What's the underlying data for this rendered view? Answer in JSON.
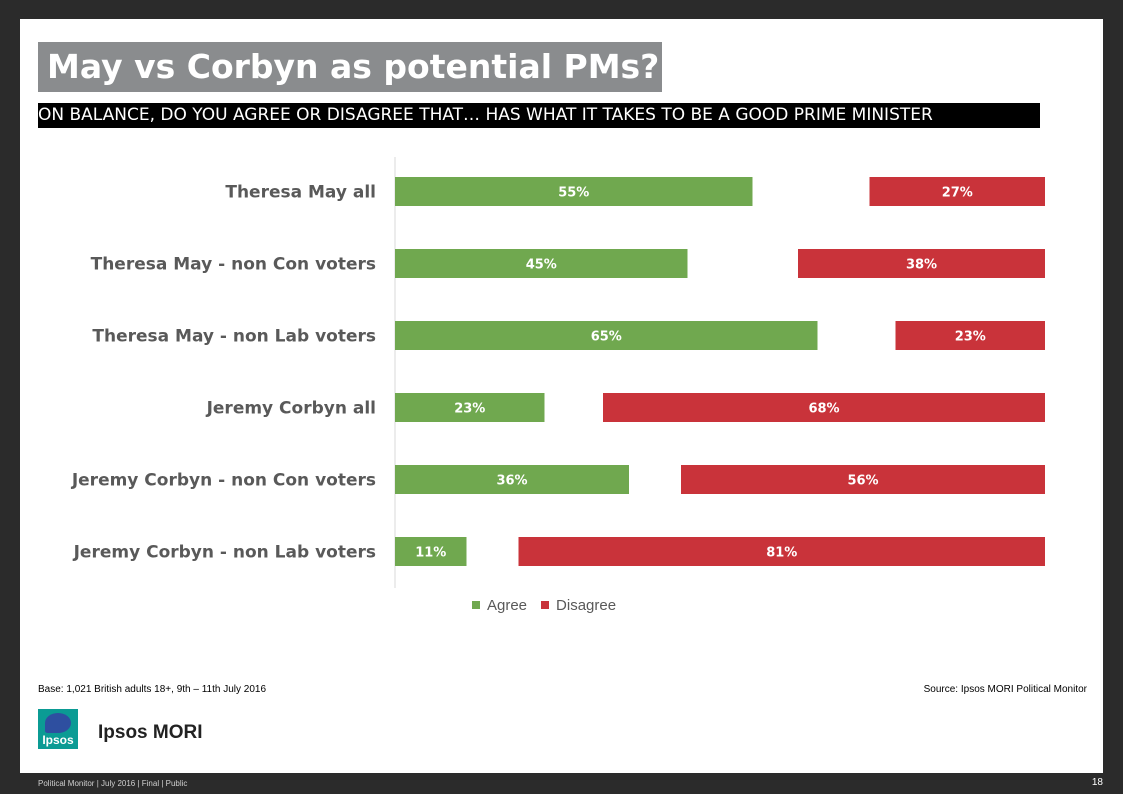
{
  "title": "May vs Corbyn as potential PMs?",
  "question": "ON BALANCE, DO YOU AGREE OR DISAGREE THAT… HAS WHAT IT TAKES TO BE A GOOD PRIME MINISTER",
  "colors": {
    "agree": "#70a84f",
    "disagree": "#c9333a",
    "title_bg": "#8a8c8e"
  },
  "legend": {
    "agree": "Agree",
    "disagree": "Disagree"
  },
  "footnote": {
    "base": "Base:  1,021 British adults 18+, 9th – 11th July 2016",
    "source": "Source: Ipsos MORI Political Monitor"
  },
  "brand": {
    "logo_text": "Ipsos",
    "name": "Ipsos MORI"
  },
  "footer": {
    "text": "Political Monitor | July 2016 | Final | Public",
    "page": "18"
  },
  "chart_data": {
    "type": "bar",
    "orientation": "horizontal",
    "categories": [
      "Theresa May all",
      "Theresa May - non Con voters",
      "Theresa May - non Lab voters",
      "Jeremy Corbyn all",
      "Jeremy Corbyn - non Con voters",
      "Jeremy Corbyn - non Lab voters"
    ],
    "series": [
      {
        "name": "Agree",
        "values": [
          55,
          45,
          65,
          23,
          36,
          11
        ]
      },
      {
        "name": "Disagree",
        "values": [
          27,
          38,
          23,
          68,
          56,
          81
        ]
      }
    ],
    "value_suffix": "%",
    "xlim": [
      0,
      100
    ],
    "grid": false,
    "legend_position": "bottom"
  }
}
